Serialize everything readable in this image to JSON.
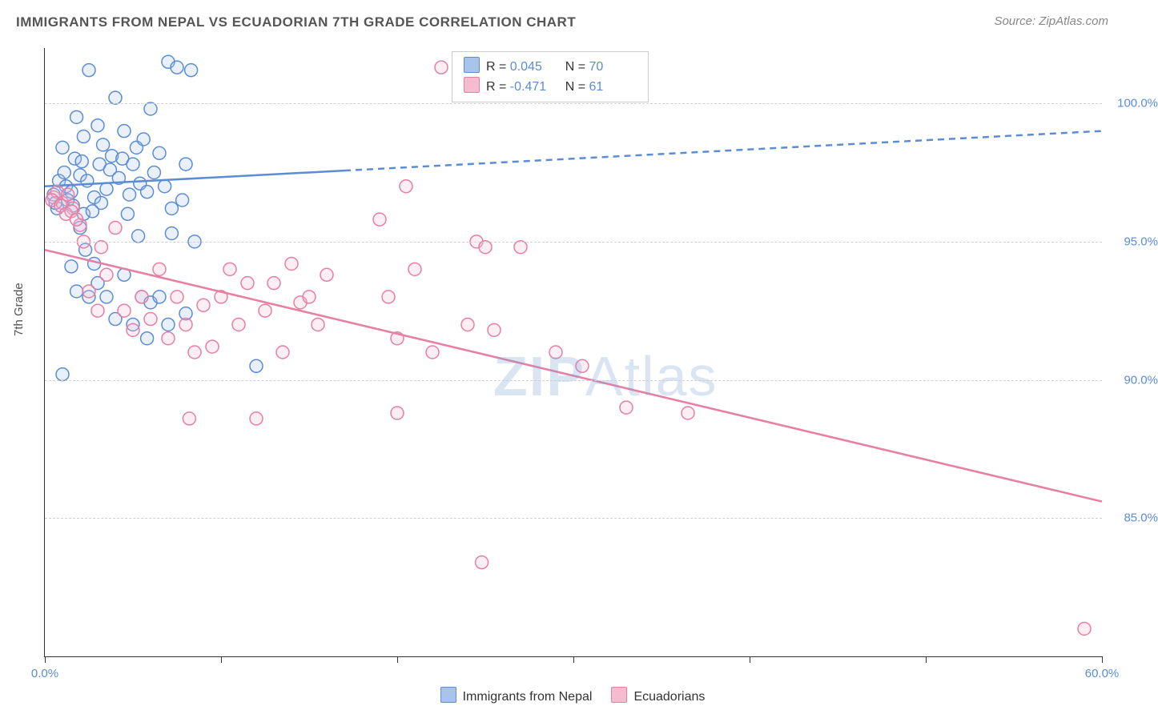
{
  "title": "IMMIGRANTS FROM NEPAL VS ECUADORIAN 7TH GRADE CORRELATION CHART",
  "source": "Source: ZipAtlas.com",
  "yaxis_title": "7th Grade",
  "watermark_bold": "ZIP",
  "watermark_light": "Atlas",
  "chart": {
    "type": "scatter-with-trend",
    "background_color": "#ffffff",
    "grid_color": "#d0d0d0",
    "axis_color": "#333333",
    "xlim": [
      0.0,
      60.0
    ],
    "ylim": [
      80.0,
      102.0
    ],
    "xtick_positions": [
      0,
      10,
      20,
      30,
      40,
      50,
      60
    ],
    "xtick_labels": {
      "0": "0.0%",
      "60": "60.0%"
    },
    "ytick_positions": [
      85.0,
      90.0,
      95.0,
      100.0
    ],
    "ytick_labels": [
      "85.0%",
      "90.0%",
      "95.0%",
      "100.0%"
    ],
    "marker_radius": 8,
    "marker_stroke_width": 1.5,
    "marker_fill_opacity": 0.25,
    "trend_line_width": 2.5,
    "series": [
      {
        "name": "Immigrants from Nepal",
        "color_stroke": "#5b8cd6",
        "color_fill": "#a9c4ea",
        "R": "0.045",
        "N": "70",
        "trend": {
          "x1": 0,
          "y1": 97.0,
          "x2": 60,
          "y2": 99.0
        },
        "trend_solid_until_x": 17,
        "points": [
          [
            0.5,
            96.7
          ],
          [
            0.8,
            97.2
          ],
          [
            1.0,
            98.4
          ],
          [
            1.2,
            97.0
          ],
          [
            1.5,
            96.8
          ],
          [
            1.7,
            98.0
          ],
          [
            1.8,
            99.5
          ],
          [
            2.0,
            97.4
          ],
          [
            2.2,
            98.8
          ],
          [
            2.4,
            97.2
          ],
          [
            2.5,
            101.2
          ],
          [
            2.8,
            96.6
          ],
          [
            3.0,
            99.2
          ],
          [
            3.1,
            97.8
          ],
          [
            3.3,
            98.5
          ],
          [
            3.5,
            96.9
          ],
          [
            3.7,
            97.6
          ],
          [
            3.8,
            98.1
          ],
          [
            4.0,
            100.2
          ],
          [
            4.2,
            97.3
          ],
          [
            4.4,
            98.0
          ],
          [
            4.5,
            99.0
          ],
          [
            4.8,
            96.7
          ],
          [
            5.0,
            97.8
          ],
          [
            5.2,
            98.4
          ],
          [
            5.4,
            97.1
          ],
          [
            5.6,
            98.7
          ],
          [
            5.8,
            96.8
          ],
          [
            6.0,
            99.8
          ],
          [
            6.2,
            97.5
          ],
          [
            6.5,
            98.2
          ],
          [
            6.8,
            97.0
          ],
          [
            7.0,
            101.5
          ],
          [
            7.2,
            96.2
          ],
          [
            7.5,
            101.3
          ],
          [
            7.8,
            96.5
          ],
          [
            8.0,
            97.8
          ],
          [
            8.3,
            101.2
          ],
          [
            8.5,
            95.0
          ],
          [
            1.0,
            90.2
          ],
          [
            1.5,
            94.1
          ],
          [
            1.8,
            93.2
          ],
          [
            2.0,
            95.5
          ],
          [
            2.3,
            94.7
          ],
          [
            2.5,
            93.0
          ],
          [
            2.8,
            94.2
          ],
          [
            3.0,
            93.5
          ],
          [
            3.5,
            93.0
          ],
          [
            4.0,
            92.2
          ],
          [
            4.5,
            93.8
          ],
          [
            5.0,
            92.0
          ],
          [
            5.3,
            95.2
          ],
          [
            5.5,
            93.0
          ],
          [
            5.8,
            91.5
          ],
          [
            6.0,
            92.8
          ],
          [
            6.5,
            93.0
          ],
          [
            7.0,
            92.0
          ],
          [
            7.2,
            95.3
          ],
          [
            2.2,
            96.0
          ],
          [
            0.7,
            96.2
          ],
          [
            1.3,
            96.5
          ],
          [
            2.7,
            96.1
          ],
          [
            3.2,
            96.4
          ],
          [
            1.1,
            97.5
          ],
          [
            1.6,
            96.3
          ],
          [
            2.1,
            97.9
          ],
          [
            0.6,
            96.4
          ],
          [
            4.7,
            96.0
          ],
          [
            12.0,
            90.5
          ],
          [
            8.0,
            92.4
          ]
        ]
      },
      {
        "name": "Ecuadorians",
        "color_stroke": "#e87ea3",
        "color_fill": "#f5bcd0",
        "R": "-0.471",
        "N": "61",
        "trend": {
          "x1": 0,
          "y1": 94.7,
          "x2": 60,
          "y2": 85.6
        },
        "trend_solid_until_x": 60,
        "points": [
          [
            0.5,
            96.6
          ],
          [
            0.7,
            96.8
          ],
          [
            1.0,
            96.4
          ],
          [
            1.3,
            96.7
          ],
          [
            1.6,
            96.2
          ],
          [
            2.0,
            95.6
          ],
          [
            2.5,
            93.2
          ],
          [
            3.0,
            92.5
          ],
          [
            3.5,
            93.8
          ],
          [
            4.0,
            95.5
          ],
          [
            4.5,
            92.5
          ],
          [
            5.0,
            91.8
          ],
          [
            5.5,
            93.0
          ],
          [
            6.0,
            92.2
          ],
          [
            6.5,
            94.0
          ],
          [
            7.0,
            91.5
          ],
          [
            7.5,
            93.0
          ],
          [
            8.0,
            92.0
          ],
          [
            8.2,
            88.6
          ],
          [
            8.5,
            91.0
          ],
          [
            9.0,
            92.7
          ],
          [
            9.5,
            91.2
          ],
          [
            10.0,
            93.0
          ],
          [
            10.5,
            94.0
          ],
          [
            11.0,
            92.0
          ],
          [
            11.5,
            93.5
          ],
          [
            12.0,
            88.6
          ],
          [
            12.5,
            92.5
          ],
          [
            13.0,
            93.5
          ],
          [
            13.5,
            91.0
          ],
          [
            14.0,
            94.2
          ],
          [
            14.5,
            92.8
          ],
          [
            15.0,
            93.0
          ],
          [
            15.5,
            92.0
          ],
          [
            16.0,
            93.8
          ],
          [
            19.0,
            95.8
          ],
          [
            19.5,
            93.0
          ],
          [
            20.0,
            91.5
          ],
          [
            20.0,
            88.8
          ],
          [
            20.5,
            97.0
          ],
          [
            21.0,
            94.0
          ],
          [
            22.0,
            91.0
          ],
          [
            22.5,
            101.3
          ],
          [
            24.0,
            92.0
          ],
          [
            24.5,
            95.0
          ],
          [
            24.8,
            83.4
          ],
          [
            25.0,
            94.8
          ],
          [
            25.5,
            91.8
          ],
          [
            27.0,
            94.8
          ],
          [
            29.0,
            91.0
          ],
          [
            30.5,
            90.5
          ],
          [
            33.0,
            89.0
          ],
          [
            36.5,
            88.8
          ],
          [
            59.0,
            81.0
          ],
          [
            0.4,
            96.5
          ],
          [
            0.9,
            96.3
          ],
          [
            1.2,
            96.0
          ],
          [
            1.5,
            96.1
          ],
          [
            1.8,
            95.8
          ],
          [
            2.2,
            95.0
          ],
          [
            3.2,
            94.8
          ]
        ]
      }
    ],
    "legend": {
      "top_rows": [
        {
          "swatch_fill": "#a9c4ea",
          "swatch_stroke": "#5b8cd6",
          "r_label": "R =",
          "r_val": "0.045",
          "n_label": "N =",
          "n_val": "70"
        },
        {
          "swatch_fill": "#f5bcd0",
          "swatch_stroke": "#e87ea3",
          "r_label": "R =",
          "r_val": "-0.471",
          "n_label": "N =",
          "n_val": "61"
        }
      ],
      "bottom": [
        {
          "swatch_fill": "#a9c4ea",
          "swatch_stroke": "#5b8cd6",
          "label": "Immigrants from Nepal"
        },
        {
          "swatch_fill": "#f5bcd0",
          "swatch_stroke": "#e87ea3",
          "label": "Ecuadorians"
        }
      ]
    }
  }
}
